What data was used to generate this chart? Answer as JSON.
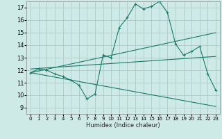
{
  "xlabel": "Humidex (Indice chaleur)",
  "background_color": "#ceeae6",
  "grid_color": "#aaccc8",
  "line_color": "#1a7a6a",
  "xlim": [
    -0.5,
    23.5
  ],
  "ylim": [
    8.5,
    17.5
  ],
  "yticks": [
    9,
    10,
    11,
    12,
    13,
    14,
    15,
    16,
    17
  ],
  "xticks": [
    0,
    1,
    2,
    3,
    4,
    5,
    6,
    7,
    8,
    9,
    10,
    11,
    12,
    13,
    14,
    15,
    16,
    17,
    18,
    19,
    20,
    21,
    22,
    23
  ],
  "line1_x": [
    0,
    1,
    2,
    3,
    4,
    5,
    6,
    7,
    8,
    9,
    10,
    11,
    12,
    13,
    14,
    15,
    16,
    17,
    18,
    19,
    20,
    21,
    22,
    23
  ],
  "line1_y": [
    11.8,
    12.1,
    12.0,
    11.7,
    11.5,
    11.2,
    10.8,
    9.7,
    10.1,
    13.2,
    13.0,
    15.4,
    16.2,
    17.3,
    16.9,
    17.1,
    17.5,
    16.6,
    14.1,
    13.2,
    13.5,
    13.9,
    11.7,
    10.4
  ],
  "line2_x": [
    0,
    23
  ],
  "line2_y": [
    11.8,
    15.0
  ],
  "line3_x": [
    0,
    23
  ],
  "line3_y": [
    11.8,
    9.1
  ],
  "line4_x": [
    0,
    23
  ],
  "line4_y": [
    12.1,
    13.1
  ]
}
